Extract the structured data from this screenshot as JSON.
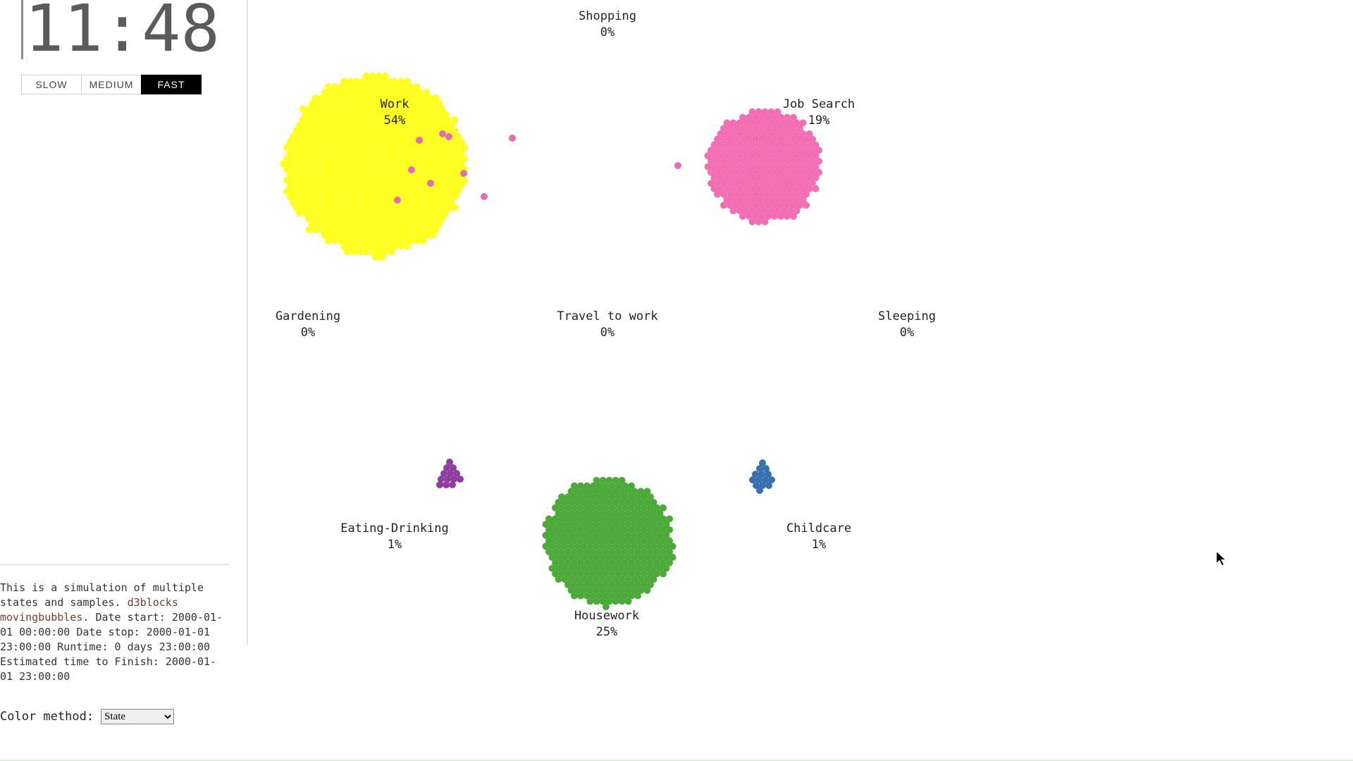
{
  "clock": "11:48",
  "speed_buttons": [
    {
      "label": "SLOW",
      "active": false
    },
    {
      "label": "MEDIUM",
      "active": false
    },
    {
      "label": "FAST",
      "active": true
    }
  ],
  "info": {
    "text_before_link": "This is a simulation of multiple states and samples. ",
    "link_text": "d3blocks movingbubbles",
    "text_after_link": ". Date start: 2000-01-01 00:00:00 Date stop: 2000-01-01 23:00:00 Runtime: 0 days 23:00:00 Estimated time to Finish: 2000-01-01 23:00:00"
  },
  "color_method": {
    "label": "Color method:",
    "selected": "State"
  },
  "states": [
    {
      "name": "Shopping",
      "percent": "0%",
      "color": null
    },
    {
      "name": "Work",
      "percent": "54%",
      "color": "#ffff22"
    },
    {
      "name": "Job Search",
      "percent": "19%",
      "color": "#f36fb3"
    },
    {
      "name": "Gardening",
      "percent": "0%",
      "color": null
    },
    {
      "name": "Travel to work",
      "percent": "0%",
      "color": null
    },
    {
      "name": "Sleeping",
      "percent": "0%",
      "color": null
    },
    {
      "name": "Eating-Drinking",
      "percent": "1%",
      "color": "#8e3e9e"
    },
    {
      "name": "Housework",
      "percent": "25%",
      "color": "#4daa3a"
    },
    {
      "name": "Childcare",
      "percent": "1%",
      "color": "#3670b0"
    }
  ],
  "colors": {
    "transit": "#e46cb2"
  },
  "icons": {
    "cursor": "mouse-pointer-icon",
    "dropdown": "chevron-down-icon"
  }
}
